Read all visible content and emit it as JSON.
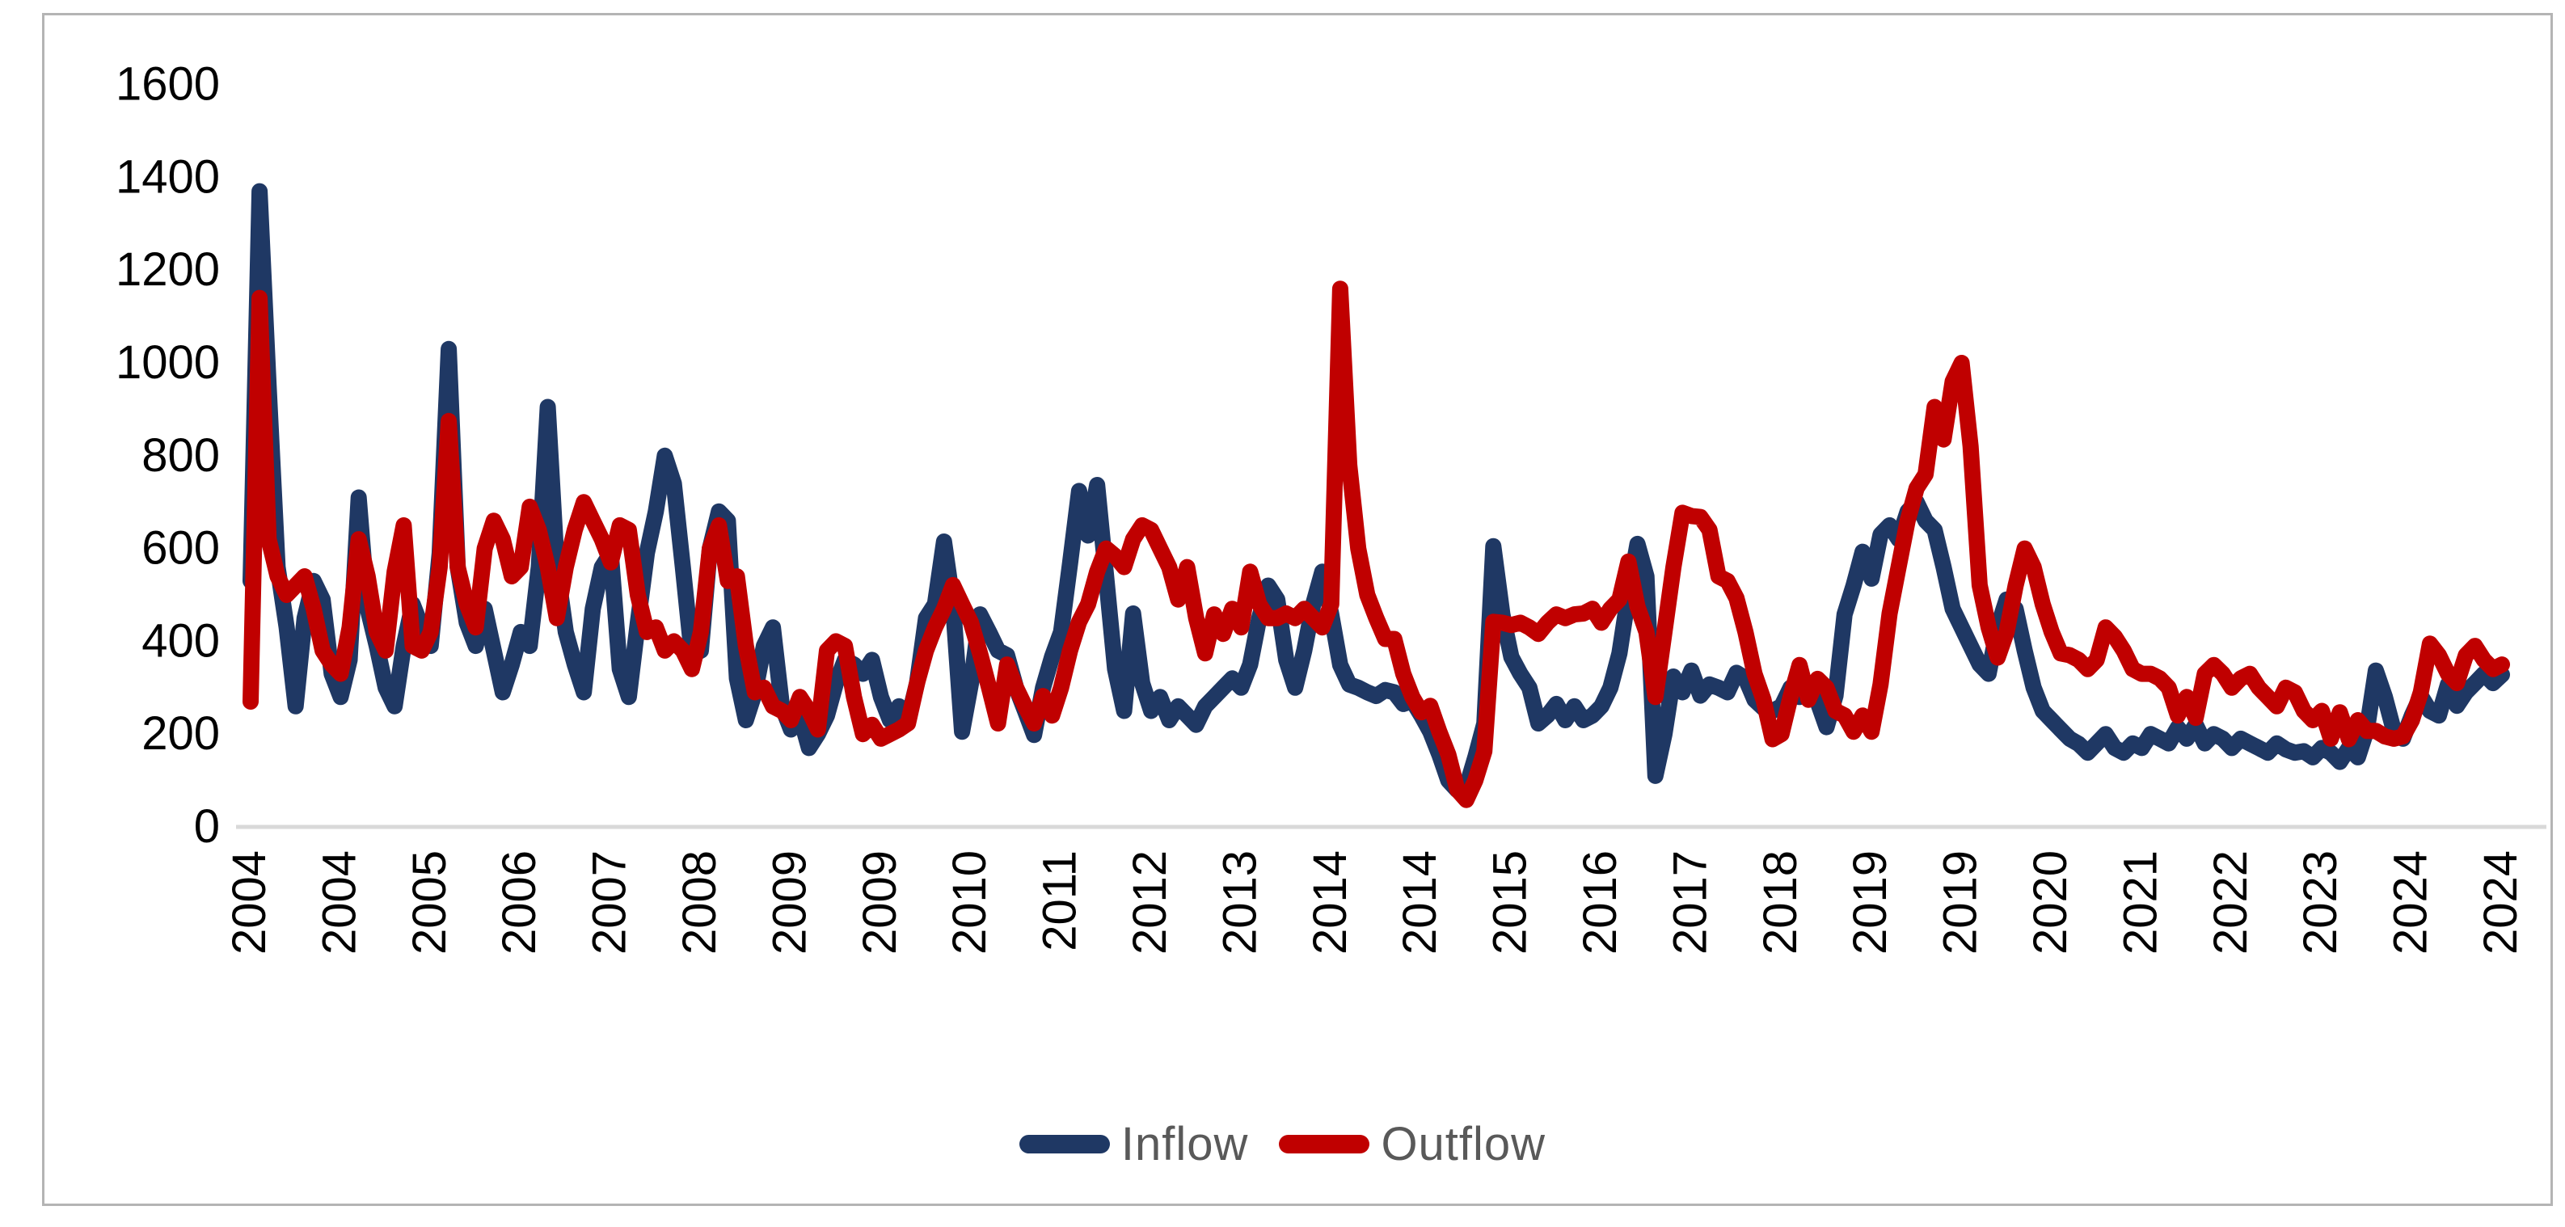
{
  "chart_data": {
    "type": "line",
    "title": "",
    "xlabel": "",
    "ylabel": "",
    "ylim": [
      0,
      1600
    ],
    "y_ticks": [
      0,
      200,
      400,
      600,
      800,
      1000,
      1200,
      1400,
      1600
    ],
    "grid": "baseline-only",
    "legend_position": "bottom",
    "x_tick_labels": [
      "2004",
      "2004",
      "2005",
      "2006",
      "2007",
      "2008",
      "2009",
      "2009",
      "2010",
      "2011",
      "2012",
      "2013",
      "2014",
      "2014",
      "2015",
      "2016",
      "2017",
      "2018",
      "2019",
      "2019",
      "2020",
      "2021",
      "2022",
      "2023",
      "2024",
      "2024"
    ],
    "x_start": "2004-01",
    "x_end": "2024-11",
    "x_frequency": "monthly",
    "series": [
      {
        "name": "Inflow",
        "color": "#1f3864",
        "values": [
          530,
          1370,
          950,
          560,
          430,
          260,
          450,
          530,
          490,
          330,
          280,
          360,
          710,
          470,
          390,
          300,
          260,
          390,
          480,
          430,
          390,
          590,
          1030,
          560,
          440,
          390,
          470,
          380,
          290,
          350,
          420,
          390,
          560,
          905,
          560,
          420,
          350,
          290,
          470,
          560,
          590,
          340,
          280,
          440,
          590,
          680,
          800,
          740,
          560,
          370,
          380,
          600,
          680,
          660,
          320,
          230,
          290,
          390,
          430,
          260,
          210,
          240,
          170,
          200,
          240,
          310,
          360,
          350,
          330,
          360,
          280,
          230,
          260,
          230,
          310,
          450,
          480,
          615,
          480,
          205,
          310,
          458,
          420,
          380,
          370,
          300,
          250,
          198,
          300,
          367,
          420,
          568,
          724,
          628,
          737,
          540,
          340,
          250,
          460,
          310,
          250,
          280,
          230,
          260,
          240,
          220,
          260,
          280,
          300,
          320,
          300,
          350,
          450,
          520,
          490,
          360,
          300,
          380,
          480,
          550,
          458,
          349,
          307,
          300,
          290,
          282,
          295,
          290,
          265,
          272,
          240,
          205,
          156,
          100,
          79,
          85,
          150,
          223,
          605,
          458,
          366,
          330,
          300,
          223,
          240,
          265,
          230,
          260,
          230,
          240,
          260,
          300,
          374,
          500,
          610,
          540,
          110,
          200,
          324,
          290,
          337,
          283,
          307,
          300,
          290,
          332,
          320,
          274,
          256,
          250,
          260,
          300,
          280,
          307,
          270,
          215,
          283,
          458,
          520,
          593,
          535,
          630,
          650,
          620,
          680,
          700,
          660,
          640,
          560,
          470,
          430,
          390,
          350,
          330,
          430,
          490,
          470,
          380,
          300,
          250,
          230,
          210,
          190,
          179,
          160,
          180,
          200,
          170,
          160,
          180,
          170,
          200,
          190,
          180,
          214,
          190,
          220,
          180,
          200,
          190,
          170,
          190,
          180,
          170,
          160,
          180,
          167,
          160,
          163,
          150,
          170,
          160,
          140,
          170,
          150,
          210,
          337,
          280,
          207,
          190,
          240,
          282,
          250,
          240,
          307,
          261,
          290,
          310,
          330,
          310,
          328
        ]
      },
      {
        "name": "Outflow",
        "color": "#c00000",
        "values": [
          270,
          1140,
          620,
          540,
          500,
          520,
          540,
          470,
          380,
          350,
          330,
          430,
          620,
          540,
          420,
          380,
          550,
          650,
          390,
          380,
          420,
          560,
          875,
          560,
          480,
          430,
          600,
          660,
          620,
          540,
          560,
          690,
          640,
          560,
          450,
          560,
          640,
          700,
          660,
          620,
          570,
          650,
          640,
          500,
          420,
          430,
          380,
          400,
          380,
          340,
          420,
          600,
          650,
          530,
          540,
          390,
          290,
          300,
          260,
          250,
          230,
          280,
          250,
          210,
          380,
          400,
          390,
          280,
          200,
          220,
          190,
          200,
          210,
          223,
          310,
          380,
          430,
          470,
          521,
          480,
          440,
          374,
          300,
          223,
          350,
          300,
          260,
          223,
          282,
          240,
          300,
          380,
          442,
          480,
          550,
          600,
          584,
          560,
          620,
          650,
          640,
          600,
          560,
          490,
          560,
          450,
          374,
          458,
          416,
          470,
          430,
          550,
          480,
          450,
          450,
          460,
          450,
          470,
          450,
          430,
          480,
          1160,
          780,
          600,
          500,
          450,
          405,
          405,
          330,
          280,
          247,
          261,
          205,
          156,
          80,
          58,
          100,
          163,
          442,
          440,
          435,
          440,
          430,
          416,
          440,
          458,
          450,
          458,
          460,
          470,
          440,
          470,
          490,
          572,
          475,
          420,
          280,
          420,
          560,
          677,
          670,
          668,
          640,
          540,
          530,
          493,
          420,
          330,
          274,
          189,
          200,
          280,
          349,
          274,
          319,
          300,
          250,
          240,
          205,
          240,
          205,
          307,
          460,
          560,
          660,
          730,
          760,
          905,
          835,
          960,
          1000,
          820,
          521,
          430,
          365,
          420,
          520,
          600,
          560,
          480,
          420,
          374,
          370,
          360,
          340,
          360,
          430,
          410,
          380,
          340,
          330,
          330,
          320,
          300,
          240,
          280,
          235,
          330,
          349,
          330,
          300,
          320,
          330,
          300,
          280,
          260,
          300,
          290,
          250,
          230,
          250,
          190,
          247,
          189,
          230,
          207,
          207,
          195,
          190,
          195,
          230,
          290,
          395,
          370,
          330,
          310,
          370,
          390,
          360,
          340,
          350
        ]
      }
    ],
    "colors": {
      "inflow": "#1f3864",
      "outflow": "#c00000",
      "axis_text": "#000000",
      "legend_text": "#595959",
      "baseline": "#d9d9d9",
      "frame_border": "#b4b4b4"
    },
    "legend": [
      {
        "label": "Inflow",
        "color": "#1f3864"
      },
      {
        "label": "Outflow",
        "color": "#c00000"
      }
    ]
  }
}
